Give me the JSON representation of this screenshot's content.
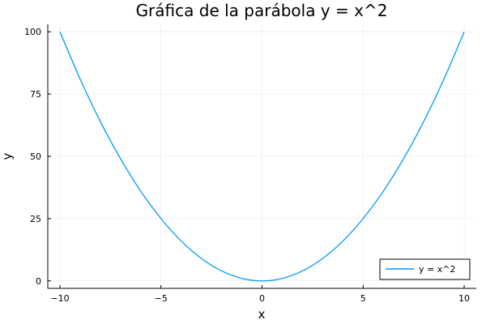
{
  "chart_data": {
    "type": "line",
    "title": "Gráfica de la parábola y = x^2",
    "xlabel": "x",
    "ylabel": "y",
    "xlim": [
      -10.6,
      10.6
    ],
    "ylim": [
      -3,
      103
    ],
    "grid": true,
    "legend_position": "bottom-right",
    "x_ticks": [
      -10,
      -5,
      0,
      5,
      10
    ],
    "x_tick_labels": [
      "−10",
      "−5",
      "0",
      "5",
      "10"
    ],
    "y_ticks": [
      0,
      25,
      50,
      75,
      100
    ],
    "y_tick_labels": [
      "0",
      "25",
      "50",
      "75",
      "100"
    ],
    "series": [
      {
        "name": "y = x^2",
        "color": "#009AFA",
        "x": [
          -10,
          -9,
          -8,
          -7,
          -6,
          -5,
          -4,
          -3,
          -2,
          -1,
          0,
          1,
          2,
          3,
          4,
          5,
          6,
          7,
          8,
          9,
          10
        ],
        "y": [
          100,
          81,
          64,
          49,
          36,
          25,
          16,
          9,
          4,
          1,
          0,
          1,
          4,
          9,
          16,
          25,
          36,
          49,
          64,
          81,
          100
        ]
      }
    ]
  }
}
